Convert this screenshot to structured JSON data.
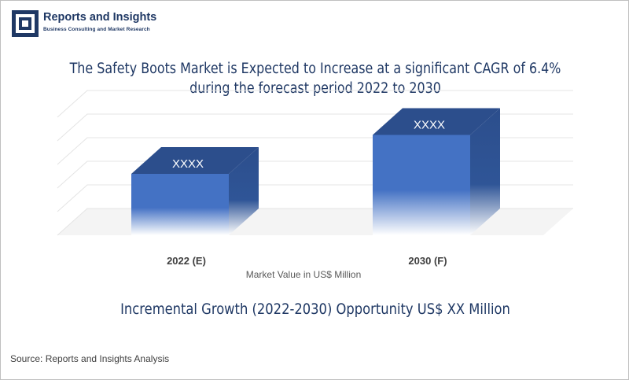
{
  "brand": {
    "name": "Reports and Insights",
    "tagline": "Business Consulting and Market Research",
    "color": "#1f3864"
  },
  "title": "The Safety Boots Market is Expected to Increase at a significant CAGR of 6.4% during the forecast period 2022 to 2030",
  "chart_data": {
    "type": "bar",
    "style": "3d-column",
    "categories": [
      "2022 (E)",
      "2030 (F)"
    ],
    "values": [
      52,
      85
    ],
    "data_labels": [
      "XXXX",
      "XXXX"
    ],
    "xlabel": "Market Value in US$ Million",
    "ylabel": "",
    "ylim": [
      0,
      100
    ],
    "grid": true,
    "bar_color": "#4472c4"
  },
  "growth_note": "Incremental Growth (2022-2030) Opportunity US$ XX Million",
  "source": "Source: Reports and Insights Analysis"
}
